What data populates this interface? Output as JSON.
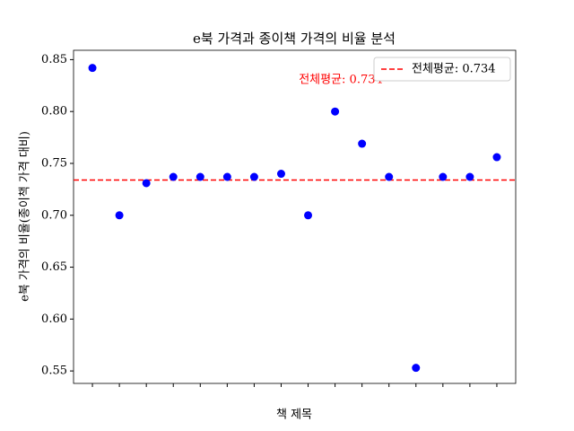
{
  "chart_data": {
    "type": "scatter",
    "title": "e북 가격과 종이책 가격의 비율 분석",
    "x_label": "책 제목",
    "y_label": "e북 가격의 비율(종이책 가격 대비)",
    "categories": [
      null,
      null,
      null,
      null,
      null,
      null,
      null,
      null,
      null,
      null,
      null,
      null,
      null,
      null,
      null,
      null
    ],
    "values": [
      0.842,
      0.7,
      0.731,
      0.737,
      0.737,
      0.737,
      0.737,
      0.74,
      0.7,
      0.8,
      0.769,
      0.737,
      0.553,
      0.737,
      0.737,
      0.756
    ],
    "color": "#0000ff",
    "ylim": [
      0.538,
      0.859
    ],
    "yticks": [
      {
        "value": 0.55,
        "label": "0.55"
      },
      {
        "value": 0.6,
        "label": "0.60"
      },
      {
        "value": 0.65,
        "label": "0.65"
      },
      {
        "value": 0.7,
        "label": "0.70"
      },
      {
        "value": 0.75,
        "label": "0.75"
      },
      {
        "value": 0.8,
        "label": "0.80"
      },
      {
        "value": 0.85,
        "label": "0.85"
      }
    ],
    "reference_line": {
      "value": 0.734,
      "label": "전체평균: 0.734",
      "color": "#ff0000"
    },
    "annotation": "전체평균: 0.734",
    "legend": "upper right"
  }
}
